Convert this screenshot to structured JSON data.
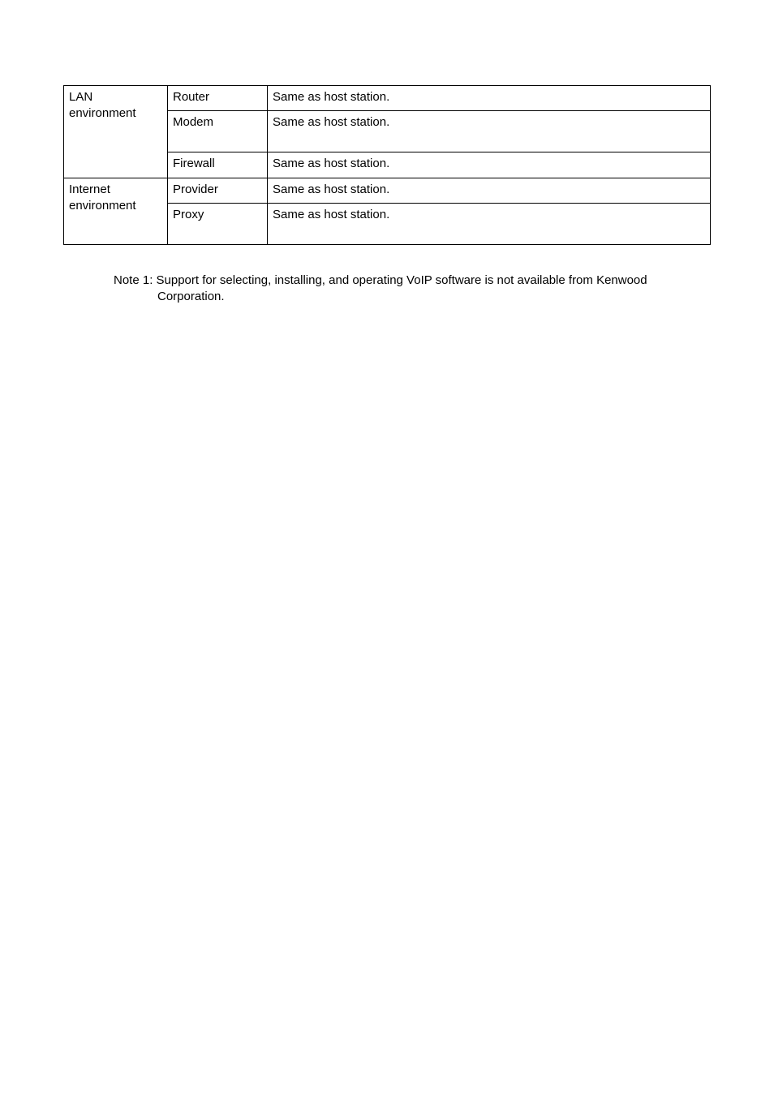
{
  "table": {
    "groups": [
      {
        "label": "LAN environment"
      },
      {
        "label": "Internet environment"
      }
    ],
    "rows": [
      {
        "col1": "Router",
        "col2": "Same as host station."
      },
      {
        "col1": "Modem",
        "col2": "Same as host station."
      },
      {
        "col1": "Firewall",
        "col2": "Same as host station."
      },
      {
        "col1": "Provider",
        "col2": "Same as host station."
      },
      {
        "col1": "Proxy",
        "col2": "Same as host station."
      }
    ]
  },
  "note": "Note 1: Support for selecting, installing, and operating VoIP software is not available from Kenwood Corporation."
}
